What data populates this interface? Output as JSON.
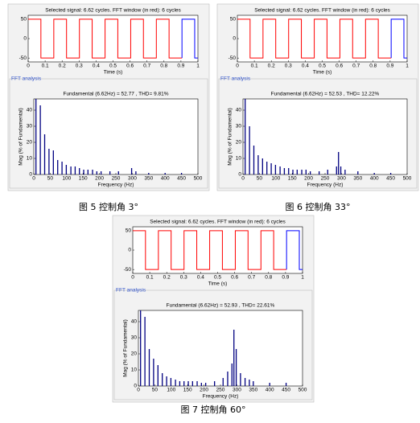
{
  "figures": [
    {
      "caption": "图 5 控制角 3°",
      "group_label": "FFT analysis",
      "signal_chart": {
        "type": "line",
        "title": "Selected signal: 6.62 cycles. FFT window (in red): 6 cycles",
        "xlabel": "Time (s)",
        "xlim": [
          0,
          1
        ],
        "xticks": [
          0,
          0.1,
          0.2,
          0.3,
          0.4,
          0.5,
          0.6,
          0.7,
          0.8,
          0.9,
          1
        ],
        "ylim": [
          -60,
          60
        ],
        "yticks": [
          -50,
          0,
          50
        ],
        "series": [
          {
            "color": "#ff0000",
            "x": [
              0,
              0.075,
              0.075,
              0.151,
              0.151,
              0.226,
              0.226,
              0.302,
              0.302,
              0.377,
              0.377,
              0.453,
              0.453,
              0.528,
              0.528,
              0.604,
              0.604,
              0.679,
              0.679,
              0.755,
              0.755,
              0.83,
              0.83,
              0.906
            ],
            "values": [
              50,
              50,
              -50,
              -50,
              50,
              50,
              -50,
              -50,
              50,
              50,
              -50,
              -50,
              50,
              50,
              -50,
              -50,
              50,
              50,
              -50,
              -50,
              50,
              50,
              -50,
              -50
            ]
          },
          {
            "color": "#0000ff",
            "x": [
              0.906,
              0.906,
              0.981,
              0.981,
              1
            ],
            "values": [
              -50,
              50,
              50,
              -50,
              -50
            ]
          }
        ]
      },
      "spectrum_chart": {
        "type": "bar",
        "title": "Fundamental (6.62Hz) = 52.77 , THD= 9.81%",
        "xlabel": "Frequency (Hz)",
        "ylabel": "Mag (% of Fundamental)",
        "xlim": [
          0,
          500
        ],
        "xticks": [
          0,
          50,
          100,
          150,
          200,
          250,
          300,
          350,
          400,
          450,
          500
        ],
        "ylim": [
          0,
          47
        ],
        "yticks": [
          0,
          10,
          20,
          30,
          40
        ],
        "color": "#000080",
        "x": [
          6.6,
          19.9,
          33.1,
          46.3,
          59.6,
          72.8,
          86,
          99,
          113,
          126,
          139,
          152,
          165,
          179,
          192,
          205,
          232,
          258,
          298,
          311,
          350,
          400,
          450
        ],
        "values": [
          47,
          43,
          25,
          16,
          15,
          9,
          8,
          6,
          5,
          5,
          4,
          3,
          3,
          3,
          2,
          2,
          2,
          2,
          4,
          2,
          1,
          1,
          1
        ]
      }
    },
    {
      "caption": "图 6 控制角 33°",
      "group_label": "FFT analysis",
      "signal_chart": {
        "type": "line",
        "title": "Selected signal: 6.62 cycles. FFT window (in red): 6 cycles",
        "xlabel": "Time (s)",
        "xlim": [
          0,
          1
        ],
        "xticks": [
          0,
          0.1,
          0.2,
          0.3,
          0.4,
          0.5,
          0.6,
          0.7,
          0.8,
          0.9,
          1
        ],
        "ylim": [
          -60,
          60
        ],
        "yticks": [
          -50,
          0,
          50
        ],
        "series": [
          {
            "color": "#ff0000",
            "x": [
              0,
              0.075,
              0.075,
              0.151,
              0.151,
              0.226,
              0.226,
              0.302,
              0.302,
              0.377,
              0.377,
              0.453,
              0.453,
              0.528,
              0.528,
              0.604,
              0.604,
              0.679,
              0.679,
              0.755,
              0.755,
              0.83,
              0.83,
              0.906
            ],
            "values": [
              50,
              50,
              -50,
              -50,
              50,
              50,
              -50,
              -50,
              50,
              50,
              -50,
              -50,
              50,
              50,
              -50,
              -50,
              50,
              50,
              -50,
              -50,
              50,
              50,
              -50,
              -50
            ]
          },
          {
            "color": "#0000ff",
            "x": [
              0.906,
              0.906,
              0.981,
              0.981,
              1
            ],
            "values": [
              -50,
              50,
              50,
              -50,
              -50
            ]
          }
        ]
      },
      "spectrum_chart": {
        "type": "bar",
        "title": "Fundamental (6.62Hz) = 52.53 , THD= 12.22%",
        "xlabel": "Frequency (Hz)",
        "ylabel": "Mag (% of Fundamental)",
        "xlim": [
          0,
          500
        ],
        "xticks": [
          0,
          50,
          100,
          150,
          200,
          250,
          300,
          350,
          400,
          450,
          500
        ],
        "ylim": [
          0,
          47
        ],
        "yticks": [
          0,
          10,
          20,
          30,
          40
        ],
        "color": "#000080",
        "x": [
          6.6,
          19.9,
          33.1,
          46.3,
          59.6,
          72.8,
          86,
          99,
          113,
          126,
          139,
          152,
          165,
          179,
          192,
          205,
          232,
          258,
          285,
          291,
          298,
          311,
          350,
          400,
          450
        ],
        "values": [
          47,
          30,
          18,
          12,
          10,
          8,
          7,
          6,
          5,
          4,
          4,
          3,
          3,
          3,
          3,
          2,
          2,
          3,
          5,
          14,
          5,
          3,
          2,
          1,
          1
        ]
      }
    },
    {
      "caption": "图 7 控制角 60°",
      "group_label": "FFT analysis",
      "signal_chart": {
        "type": "line",
        "title": "Selected signal: 6.62 cycles. FFT window (in red): 6 cycles",
        "xlabel": "Time (s)",
        "xlim": [
          0,
          1
        ],
        "xticks": [
          0,
          0.1,
          0.2,
          0.3,
          0.4,
          0.5,
          0.6,
          0.7,
          0.8,
          0.9,
          1
        ],
        "ylim": [
          -60,
          60
        ],
        "yticks": [
          -50,
          0,
          50
        ],
        "series": [
          {
            "color": "#ff0000",
            "x": [
              0,
              0.075,
              0.075,
              0.151,
              0.151,
              0.226,
              0.226,
              0.302,
              0.302,
              0.377,
              0.377,
              0.453,
              0.453,
              0.528,
              0.528,
              0.604,
              0.604,
              0.679,
              0.679,
              0.755,
              0.755,
              0.83,
              0.83,
              0.906
            ],
            "values": [
              50,
              50,
              -50,
              -50,
              50,
              50,
              -50,
              -50,
              50,
              50,
              -50,
              -50,
              50,
              50,
              -50,
              -50,
              50,
              50,
              -50,
              -50,
              50,
              50,
              -50,
              -50
            ]
          },
          {
            "color": "#0000ff",
            "x": [
              0.906,
              0.906,
              0.981,
              0.981,
              1
            ],
            "values": [
              -50,
              50,
              50,
              -50,
              -50
            ]
          }
        ]
      },
      "spectrum_chart": {
        "type": "bar",
        "title": "Fundamental (6.62Hz) = 52.93 , THD= 22.61%",
        "xlabel": "Frequency (Hz)",
        "ylabel": "Mag (% of Fundamental)",
        "xlim": [
          0,
          500
        ],
        "xticks": [
          0,
          50,
          100,
          150,
          200,
          250,
          300,
          350,
          400,
          450,
          500
        ],
        "ylim": [
          0,
          47
        ],
        "yticks": [
          0,
          10,
          20,
          30,
          40
        ],
        "color": "#000080",
        "x": [
          6.6,
          19.9,
          33.1,
          46.3,
          59.6,
          72.8,
          86,
          99,
          113,
          126,
          139,
          152,
          165,
          179,
          192,
          205,
          232,
          258,
          272,
          285,
          291,
          298,
          311,
          325,
          338,
          350,
          400,
          450
        ],
        "values": [
          47,
          43,
          23,
          17,
          13,
          8,
          6,
          5,
          4,
          3,
          3,
          3,
          3,
          3,
          2,
          2,
          3,
          5,
          9,
          14,
          35,
          23,
          8,
          5,
          4,
          3,
          2,
          2
        ]
      }
    }
  ]
}
